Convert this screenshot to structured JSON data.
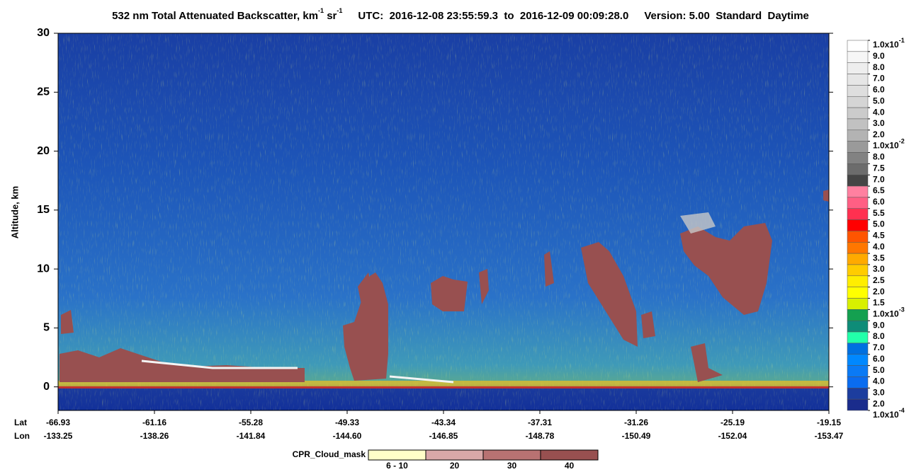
{
  "chart_data": {
    "type": "heatmap",
    "title": {
      "main": "532 nm Total Attenuated Backscatter, km",
      "exp1": "-1",
      "unit2": " sr",
      "exp2": "-1",
      "time": "UTC:  2016-12-08 23:55:59.3  to  2016-12-09 00:09:28.0",
      "version": "Version: 5.00  Standard  Daytime"
    },
    "y_label": "Altitude, km",
    "ylim": [
      -2,
      30
    ],
    "yticks": [
      0,
      5,
      10,
      15,
      20,
      25,
      30
    ],
    "x_rows": [
      {
        "name": "Lat",
        "labels": [
          "-66.93",
          "-61.16",
          "-55.28",
          "-49.33",
          "-43.34",
          "-37.31",
          "-31.26",
          "-25.19",
          "-19.15"
        ]
      },
      {
        "name": "Lon",
        "labels": [
          "-133.25",
          "-138.26",
          "-141.84",
          "-144.60",
          "-146.85",
          "-148.78",
          "-150.49",
          "-152.04",
          "-153.47"
        ]
      }
    ],
    "colorbar": {
      "labels": [
        {
          "base": "1.0x10",
          "exp": "-1"
        },
        "9.0",
        "8.0",
        "7.0",
        "6.0",
        "5.0",
        "4.0",
        "3.0",
        "2.0",
        {
          "base": "1.0x10",
          "exp": "-2"
        },
        "8.0",
        "7.5",
        "7.0",
        "6.5",
        "6.0",
        "5.5",
        "5.0",
        "4.5",
        "4.0",
        "3.5",
        "3.0",
        "2.5",
        "2.0",
        "1.5",
        {
          "base": "1.0x10",
          "exp": "-3"
        },
        "9.0",
        "8.0",
        "7.0",
        "6.0",
        "5.0",
        "4.0",
        "3.0",
        "2.0",
        {
          "base": "1.0x10",
          "exp": "-4"
        }
      ],
      "colors": [
        "#ffffff",
        "#f6f6f6",
        "#eeeeee",
        "#e6e6e6",
        "#dedede",
        "#d5d5d5",
        "#cbcbcb",
        "#c1c1c1",
        "#b3b3b3",
        "#9a9a9a",
        "#828282",
        "#6c6c6c",
        "#454545",
        "#ff80a0",
        "#ff5f84",
        "#ff3050",
        "#ff0000",
        "#ff5500",
        "#ff7700",
        "#ffaa00",
        "#ffcc00",
        "#ffee00",
        "#ffff00",
        "#d8f000",
        "#14a050",
        "#0e8c78",
        "#22ffaa",
        "#0070e0",
        "#0088ff",
        "#0a7af5",
        "#0a6cf0",
        "#1c3d9e",
        "#1a2c8c"
      ]
    },
    "mask_legend": {
      "label": "CPR_Cloud_mask",
      "labels": [
        "6 - 10",
        "20",
        "30",
        "40"
      ],
      "colors": [
        "#ffffc8",
        "#d9a8a8",
        "#b87272",
        "#985050"
      ]
    }
  }
}
